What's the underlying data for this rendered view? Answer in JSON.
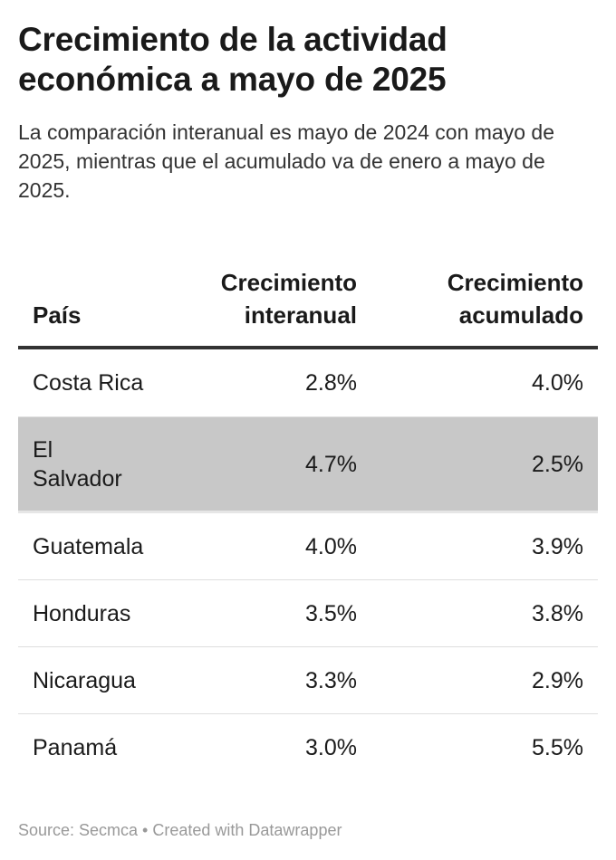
{
  "title": "Crecimiento de la actividad económica a mayo de 2025",
  "subtitle": "La comparación interanual es mayo de 2024 con mayo de 2025, mientras que el acumulado va de enero a mayo de 2025.",
  "table": {
    "headers": {
      "country": "País",
      "yoy_line1": "Crecimiento",
      "yoy_line2": "interanual",
      "acc_line1": "Crecimiento",
      "acc_line2": "acumulado"
    },
    "rows": [
      {
        "country": "Costa Rica",
        "yoy": "2.8%",
        "acc": "4.0%",
        "highlighted": false
      },
      {
        "country": "El Salvador",
        "yoy": "4.7%",
        "acc": "2.5%",
        "highlighted": true
      },
      {
        "country": "Guatemala",
        "yoy": "4.0%",
        "acc": "3.9%",
        "highlighted": false
      },
      {
        "country": "Honduras",
        "yoy": "3.5%",
        "acc": "3.8%",
        "highlighted": false
      },
      {
        "country": "Nicaragua",
        "yoy": "3.3%",
        "acc": "2.9%",
        "highlighted": false
      },
      {
        "country": "Panamá",
        "yoy": "3.0%",
        "acc": "5.5%",
        "highlighted": false
      }
    ]
  },
  "source": "Source: Secmca • Created with Datawrapper",
  "colors": {
    "highlight_row": "#c8c8c8",
    "header_rule": "#333333",
    "footer_text": "#999999"
  },
  "chart_data": {
    "type": "table",
    "title": "Crecimiento de la actividad económica a mayo de 2025",
    "subtitle": "La comparación interanual es mayo de 2024 con mayo de 2025, mientras que el acumulado va de enero a mayo de 2025.",
    "columns": [
      "País",
      "Crecimiento interanual",
      "Crecimiento acumulado"
    ],
    "categories": [
      "Costa Rica",
      "El Salvador",
      "Guatemala",
      "Honduras",
      "Nicaragua",
      "Panamá"
    ],
    "series": [
      {
        "name": "Crecimiento interanual",
        "values": [
          2.8,
          4.7,
          4.0,
          3.5,
          3.3,
          3.0
        ]
      },
      {
        "name": "Crecimiento acumulado",
        "values": [
          4.0,
          2.5,
          3.9,
          3.8,
          2.9,
          5.5
        ]
      }
    ],
    "unit": "%",
    "highlighted_category": "El Salvador"
  }
}
